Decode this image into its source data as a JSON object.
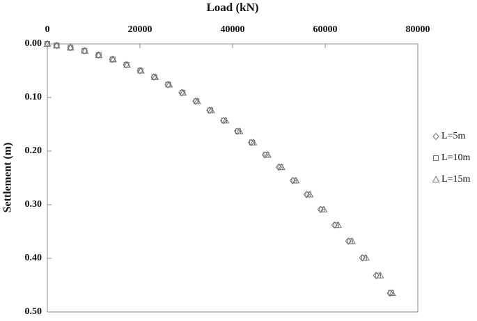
{
  "chart_data": {
    "type": "scatter",
    "title": "Load (kN)",
    "y_label": "Settlement (m)",
    "xlim": [
      0,
      80000
    ],
    "xticks": [
      0,
      20000,
      40000,
      60000,
      80000
    ],
    "ylim": [
      0,
      0.5
    ],
    "y_inverted": true,
    "x_axis_position": "top",
    "yticks": [
      {
        "value": 0,
        "label": "0.00"
      },
      {
        "value": 0.1,
        "label": "0.10"
      },
      {
        "value": 0.2,
        "label": "0.20"
      },
      {
        "value": 0.3,
        "label": "0.30"
      },
      {
        "value": 0.4,
        "label": "0.40"
      },
      {
        "value": 0.5,
        "label": "0.50"
      }
    ],
    "grid": false,
    "legend": "right",
    "series": [
      {
        "name": "L=5m",
        "marker": "diamond",
        "color": "#707070",
        "x": [
          0,
          2000,
          5000,
          8000,
          11000,
          14000,
          17000,
          20000,
          23000,
          26000,
          29000,
          32000,
          35000,
          38000,
          41000,
          44000,
          47000,
          50000,
          53000,
          56000,
          59000,
          62000,
          65000,
          68000,
          71000,
          74000
        ],
        "values": [
          0,
          0.003,
          0.007,
          0.013,
          0.021,
          0.029,
          0.039,
          0.05,
          0.062,
          0.076,
          0.091,
          0.107,
          0.124,
          0.143,
          0.163,
          0.184,
          0.207,
          0.23,
          0.255,
          0.281,
          0.309,
          0.338,
          0.368,
          0.399,
          0.432,
          0.465
        ]
      },
      {
        "name": "L=10m",
        "marker": "square",
        "color": "#707070",
        "x": [
          0,
          2000,
          5000,
          8000,
          11100,
          14100,
          17100,
          20100,
          23100,
          26100,
          29200,
          32200,
          35200,
          38200,
          41200,
          44200,
          47300,
          50300,
          53300,
          56300,
          59300,
          62400,
          65400,
          68400,
          71400,
          74200
        ],
        "values": [
          0,
          0.003,
          0.007,
          0.013,
          0.021,
          0.029,
          0.039,
          0.05,
          0.062,
          0.076,
          0.091,
          0.107,
          0.124,
          0.143,
          0.163,
          0.184,
          0.207,
          0.23,
          0.255,
          0.281,
          0.309,
          0.338,
          0.368,
          0.399,
          0.432,
          0.464
        ]
      },
      {
        "name": "L=15m",
        "marker": "triangle",
        "color": "#707070",
        "x": [
          0,
          2000,
          5000,
          8100,
          11100,
          14200,
          17200,
          20200,
          23300,
          26300,
          29300,
          32400,
          35400,
          38500,
          41500,
          44500,
          47600,
          50600,
          53700,
          56700,
          59700,
          62800,
          65800,
          68800,
          71900,
          74500
        ],
        "values": [
          0,
          0.003,
          0.007,
          0.013,
          0.021,
          0.029,
          0.039,
          0.05,
          0.062,
          0.076,
          0.091,
          0.107,
          0.124,
          0.143,
          0.163,
          0.184,
          0.207,
          0.23,
          0.255,
          0.281,
          0.309,
          0.338,
          0.368,
          0.399,
          0.432,
          0.465
        ]
      }
    ]
  }
}
